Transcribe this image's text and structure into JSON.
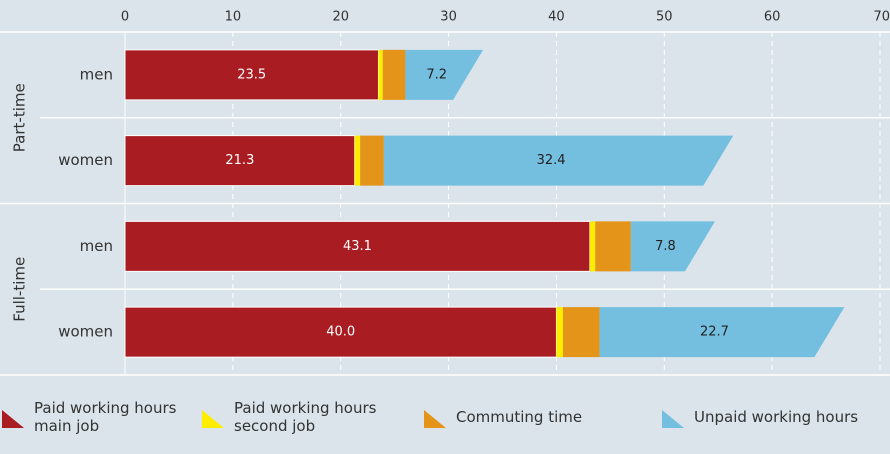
{
  "chart_data": {
    "type": "stacked-bar-horizontal",
    "xlim": [
      0,
      70
    ],
    "xticks": [
      0,
      10,
      20,
      30,
      40,
      50,
      60,
      70
    ],
    "grid": true,
    "groups": [
      {
        "name": "Part-time",
        "categories": [
          "men",
          "women"
        ]
      },
      {
        "name": "Full-time",
        "categories": [
          "men",
          "women"
        ]
      }
    ],
    "series": [
      {
        "name": "Paid working hours main job",
        "color": "#a81c22",
        "values": [
          23.5,
          21.3,
          43.1,
          40.0
        ],
        "value_labels": [
          "23.5",
          "21.3",
          "43.1",
          "40.0"
        ]
      },
      {
        "name": "Paid working hours second job",
        "color": "#ffed00",
        "values": [
          0.4,
          0.5,
          0.5,
          0.6
        ]
      },
      {
        "name": "Commuting time",
        "color": "#e39419",
        "values": [
          2.1,
          2.2,
          3.3,
          3.4
        ]
      },
      {
        "name": "Unpaid working hours",
        "color": "#74bfe0",
        "values": [
          7.2,
          32.4,
          7.8,
          22.7
        ],
        "value_labels": [
          "7.2",
          "32.4",
          "7.8",
          "22.7"
        ]
      }
    ],
    "legend": "bottom"
  }
}
